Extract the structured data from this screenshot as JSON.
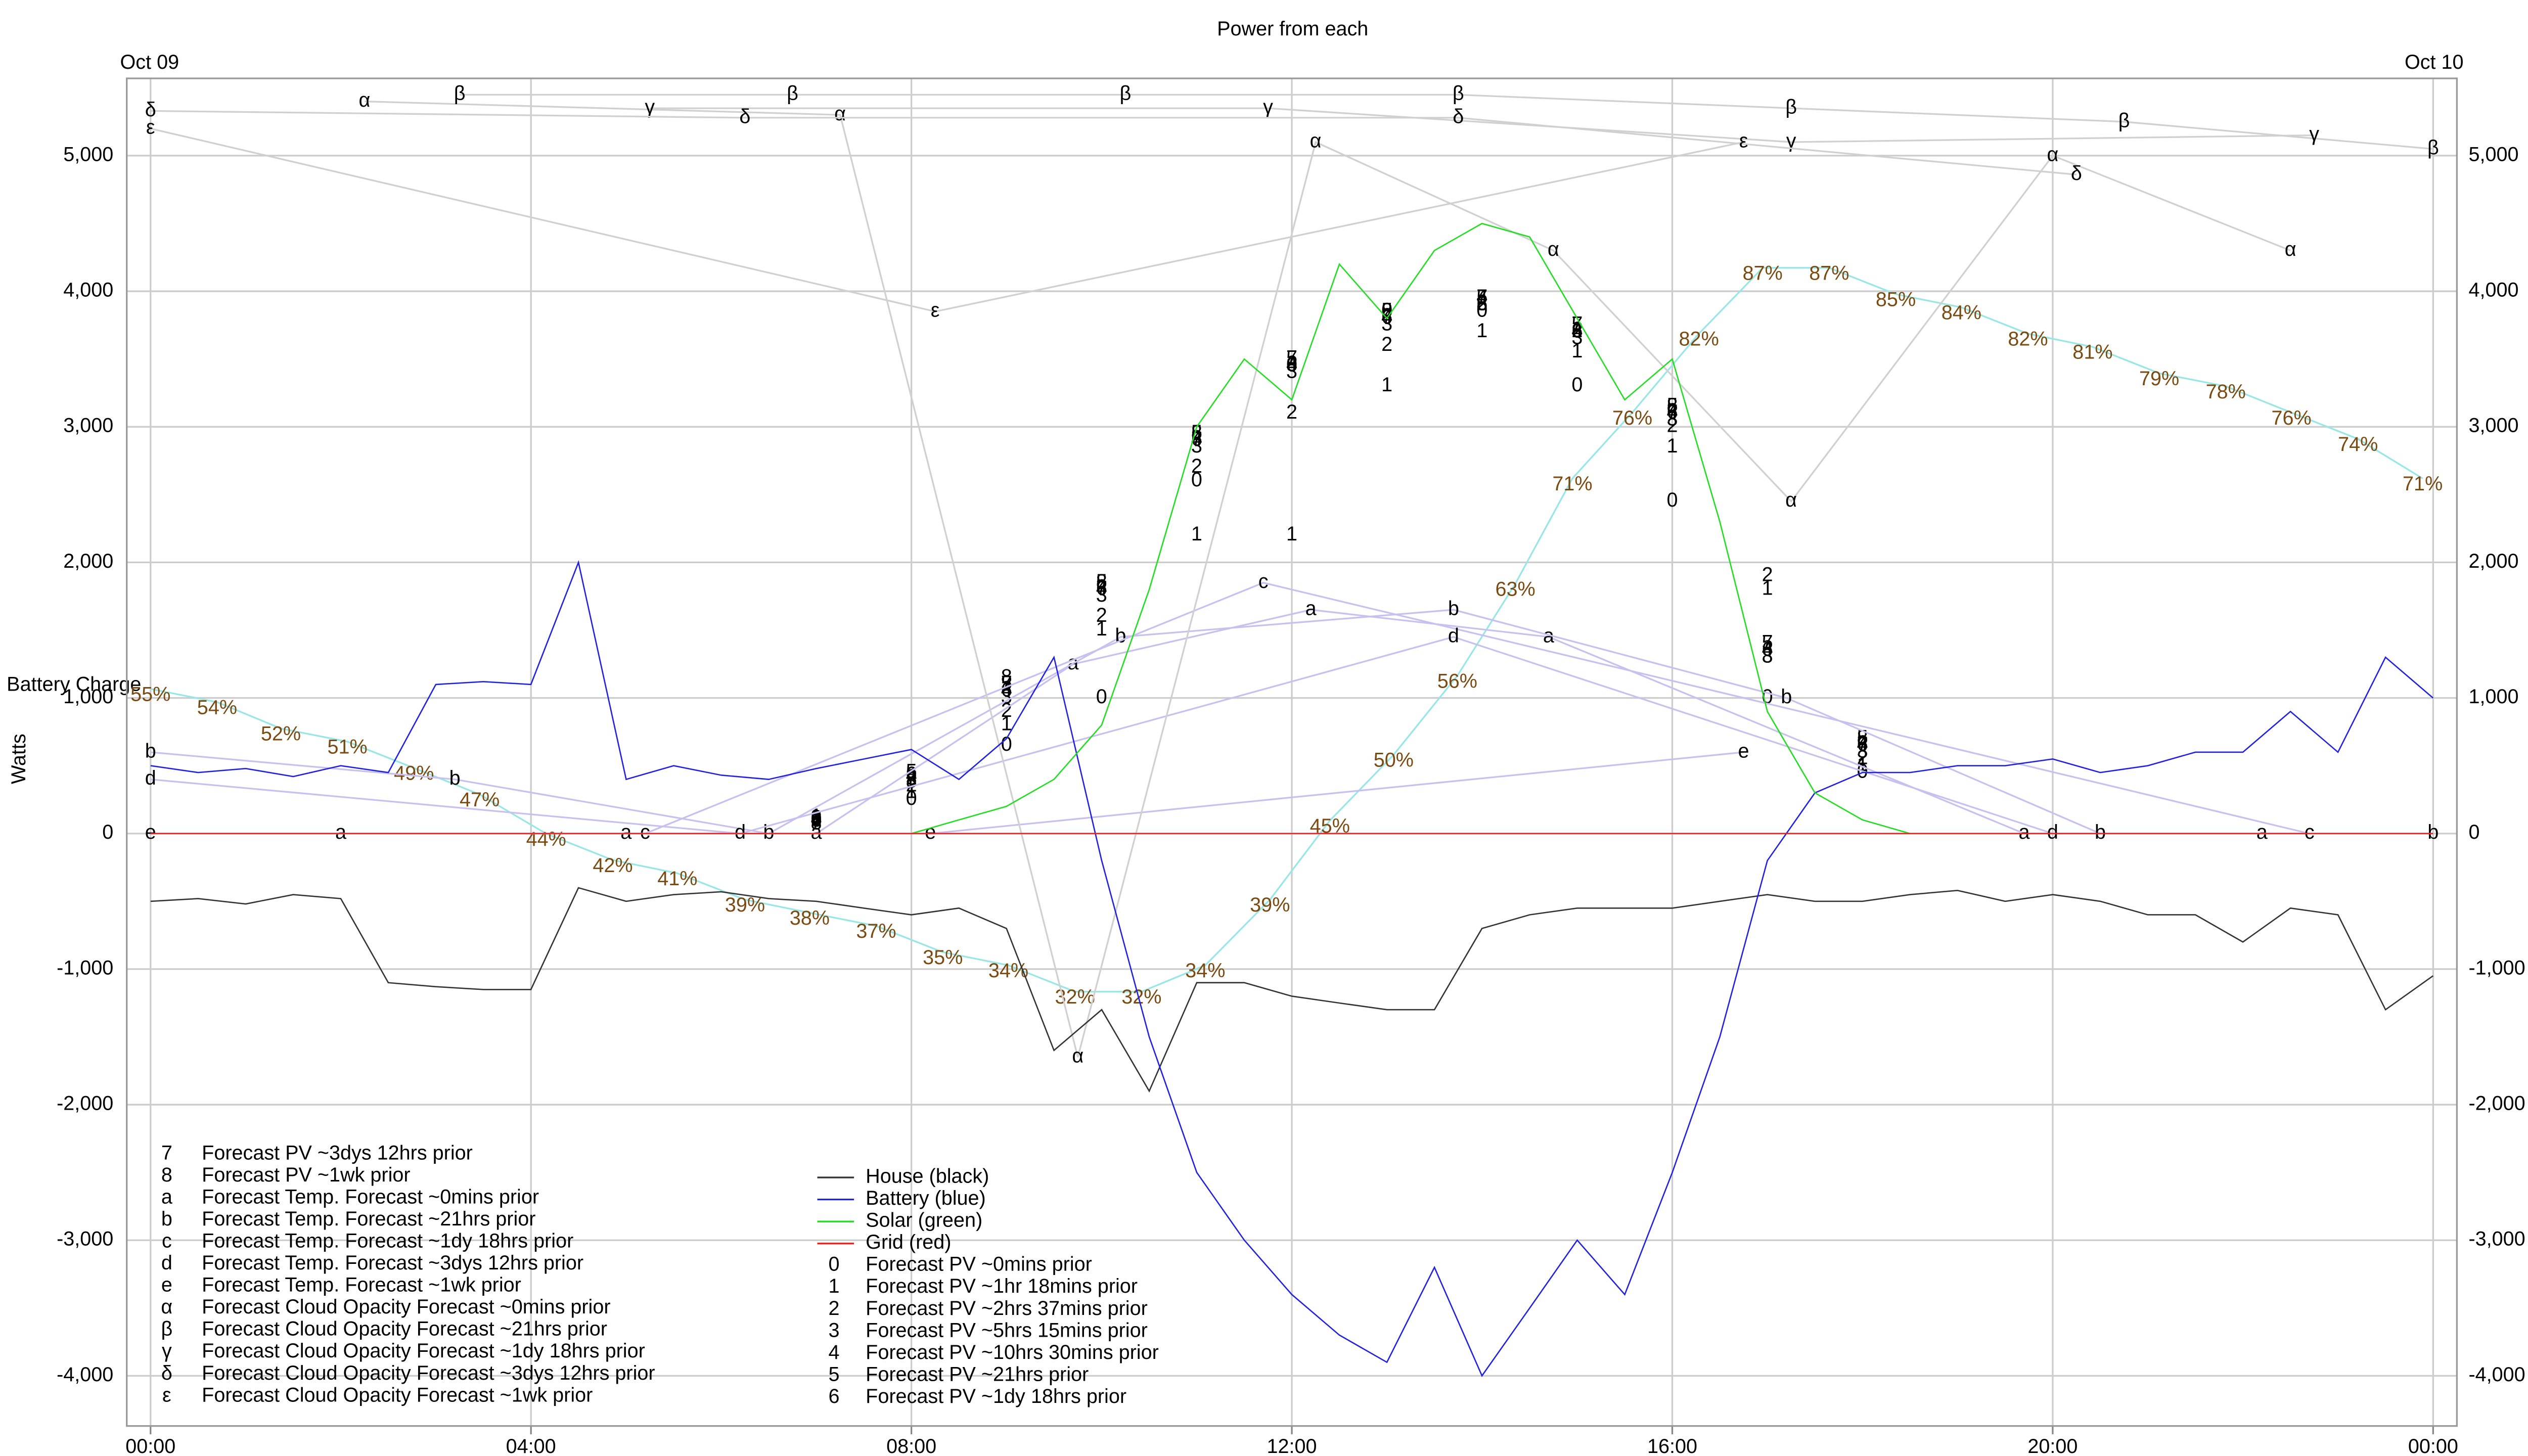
{
  "chart_data": {
    "type": "line",
    "title": "Power from each",
    "date_labels": [
      "Oct 09",
      "Oct 10"
    ],
    "ylabel": "Watts",
    "xlim": [
      -0.25,
      24.25
    ],
    "xticks": [
      {
        "value": 0,
        "label": "00:00"
      },
      {
        "value": 4,
        "label": "04:00"
      },
      {
        "value": 8,
        "label": "08:00"
      },
      {
        "value": 12,
        "label": "12:00"
      },
      {
        "value": 16,
        "label": "16:00"
      },
      {
        "value": 20,
        "label": "20:00"
      },
      {
        "value": 24,
        "label": "00:00"
      }
    ],
    "ylim": [
      -4370,
      5570
    ],
    "yticks": [
      {
        "value": -4000,
        "label": "-4,000"
      },
      {
        "value": -3000,
        "label": "-3,000"
      },
      {
        "value": -2000,
        "label": "-2,000"
      },
      {
        "value": -1000,
        "label": "-1,000"
      },
      0,
      {
        "value": 1000,
        "label": "1,000"
      },
      {
        "value": 2000,
        "label": "2,000"
      },
      {
        "value": 3000,
        "label": "3,000"
      },
      {
        "value": 4000,
        "label": "4,000"
      },
      {
        "value": 5000,
        "label": "5,000"
      }
    ],
    "y2lim": [
      -1,
      101.4
    ],
    "grid": true,
    "battery_charge": {
      "name": "Battery Charge",
      "color": "#99e6e6",
      "label_color": "#7a4a10",
      "axis": "y2",
      "x": [
        0,
        0.7,
        1.37,
        2.07,
        2.77,
        3.46,
        4.16,
        4.86,
        5.54,
        6.25,
        6.93,
        7.63,
        8.33,
        9.02,
        9.72,
        10.42,
        11.09,
        11.77,
        12.4,
        13.07,
        13.74,
        14.35,
        14.95,
        15.58,
        16.28,
        16.95,
        17.65,
        18.35,
        19.04,
        19.74,
        20.42,
        21.12,
        21.82,
        22.51,
        23.21,
        23.89
      ],
      "values": [
        55,
        54,
        52,
        51,
        49,
        47,
        44,
        42,
        41,
        39,
        38,
        37,
        35,
        34,
        32,
        32,
        34,
        39,
        45,
        50,
        56,
        63,
        71,
        76,
        82,
        87,
        87,
        85,
        84,
        82,
        81,
        79,
        78,
        76,
        74,
        71
      ],
      "value_labels": [
        "55%",
        "54%",
        "52%",
        "51%",
        "49%",
        "47%",
        "44%",
        "42%",
        "41%",
        "39%",
        "38%",
        "37%",
        "35%",
        "34%",
        "32%",
        "32%",
        "34%",
        "39%",
        "45%",
        "50%",
        "56%",
        "63%",
        "71%",
        "76%",
        "82%",
        "87%",
        "87%",
        "85%",
        "84%",
        "82%",
        "81%",
        "79%",
        "78%",
        "76%",
        "74%",
        "71%"
      ]
    },
    "series": [
      {
        "name": "House (black)",
        "color": "#333333",
        "style": "line",
        "x": [
          0,
          0.5,
          1,
          1.5,
          2,
          2.5,
          3,
          3.5,
          4,
          4.5,
          5,
          5.5,
          6,
          6.5,
          7,
          7.5,
          8,
          8.5,
          9,
          9.5,
          10,
          10.5,
          11,
          11.5,
          12,
          12.5,
          13,
          13.5,
          14,
          14.5,
          15,
          15.5,
          16,
          16.5,
          17,
          17.5,
          18,
          18.5,
          19,
          19.5,
          20,
          20.5,
          21,
          21.5,
          22,
          22.5,
          23,
          23.5,
          24
        ],
        "values": [
          -500,
          -480,
          -520,
          -450,
          -480,
          -1100,
          -1130,
          -1150,
          -1150,
          -400,
          -500,
          -450,
          -430,
          -480,
          -500,
          -550,
          -600,
          -550,
          -700,
          -1600,
          -1300,
          -1900,
          -1100,
          -1100,
          -1200,
          -1250,
          -1300,
          -1300,
          -700,
          -600,
          -550,
          -550,
          -550,
          -500,
          -450,
          -500,
          -500,
          -450,
          -420,
          -500,
          -450,
          -500,
          -600,
          -600,
          -800,
          -550,
          -600,
          -1300,
          -1050
        ]
      },
      {
        "name": "Battery (blue)",
        "color": "#2222dd",
        "style": "line",
        "x": [
          0,
          0.5,
          1,
          1.5,
          2,
          2.5,
          3,
          3.5,
          4,
          4.5,
          5,
          5.5,
          6,
          6.5,
          7,
          7.5,
          8,
          8.5,
          9,
          9.5,
          10,
          10.5,
          11,
          11.5,
          12,
          12.5,
          13,
          13.5,
          14,
          14.5,
          15,
          15.5,
          16,
          16.5,
          17,
          17.5,
          18,
          18.5,
          19,
          19.5,
          20,
          20.5,
          21,
          21.5,
          22,
          22.5,
          23,
          23.5,
          24
        ],
        "values": [
          500,
          450,
          480,
          420,
          500,
          450,
          1100,
          1120,
          1100,
          2000,
          400,
          500,
          430,
          400,
          480,
          550,
          620,
          400,
          700,
          1300,
          -200,
          -1500,
          -2500,
          -3000,
          -3400,
          -3700,
          -3900,
          -3200,
          -4000,
          -3500,
          -3000,
          -3400,
          -2500,
          -1500,
          -200,
          300,
          450,
          450,
          500,
          500,
          550,
          450,
          500,
          600,
          600,
          900,
          600,
          1300,
          1000
        ]
      },
      {
        "name": "Solar (green)",
        "color": "#22dd22",
        "style": "line",
        "x": [
          0,
          0.5,
          1,
          1.5,
          2,
          2.5,
          3,
          3.5,
          4,
          4.5,
          5,
          5.5,
          6,
          6.5,
          7,
          7.5,
          8,
          8.5,
          9,
          9.5,
          10,
          10.5,
          11,
          11.5,
          12,
          12.5,
          13,
          13.5,
          14,
          14.5,
          15,
          15.5,
          16,
          16.5,
          17,
          17.5,
          18,
          18.5,
          19,
          19.5,
          20,
          20.5,
          21,
          21.5,
          22,
          22.5,
          23,
          23.5,
          24
        ],
        "values": [
          0,
          0,
          0,
          0,
          0,
          0,
          0,
          0,
          0,
          0,
          0,
          0,
          0,
          0,
          0,
          0,
          0,
          100,
          200,
          400,
          800,
          1800,
          3000,
          3500,
          3200,
          4200,
          3800,
          4300,
          4500,
          4400,
          3800,
          3200,
          3500,
          2300,
          900,
          300,
          100,
          0,
          0,
          0,
          0,
          0,
          0,
          0,
          0,
          0,
          0,
          0,
          0
        ]
      },
      {
        "name": "Grid (red)",
        "color": "#ee2222",
        "style": "line",
        "x": [
          0,
          0.5,
          1,
          1.5,
          2,
          2.5,
          3,
          3.5,
          4,
          4.5,
          5,
          5.5,
          6,
          6.5,
          7,
          7.5,
          8,
          8.5,
          9,
          9.5,
          10,
          10.5,
          11,
          11.5,
          12,
          12.5,
          13,
          13.5,
          14,
          14.5,
          15,
          15.5,
          16,
          16.5,
          17,
          17.5,
          18,
          18.5,
          19,
          19.5,
          20,
          20.5,
          21,
          21.5,
          22,
          22.5,
          23,
          23.5,
          24
        ],
        "values": [
          0,
          0,
          0,
          0,
          0,
          0,
          0,
          0,
          0,
          0,
          0,
          0,
          0,
          0,
          0,
          0,
          0,
          0,
          0,
          0,
          0,
          0,
          0,
          0,
          0,
          0,
          0,
          0,
          0,
          0,
          0,
          0,
          0,
          0,
          0,
          0,
          0,
          0,
          0,
          0,
          0,
          0,
          0,
          0,
          0,
          0,
          0,
          0,
          0
        ]
      },
      {
        "name": "Forecast PV ~0mins prior",
        "marker": "0",
        "color": "#000000",
        "style": "markers",
        "x": [
          7,
          8,
          9,
          10,
          11,
          12,
          13,
          14,
          15,
          16,
          17,
          18
        ],
        "values": [
          100,
          250,
          650,
          1000,
          2600,
          3450,
          3850,
          3850,
          3300,
          2450,
          1000,
          450
        ]
      },
      {
        "name": "Forecast PV ~1hr 18mins prior",
        "marker": "1",
        "color": "#000000",
        "style": "markers",
        "x": [
          7,
          8,
          9,
          10,
          11,
          12,
          13,
          14,
          15,
          16,
          17,
          18
        ],
        "values": [
          120,
          300,
          800,
          1500,
          2200,
          2200,
          3300,
          3700,
          3550,
          2850,
          1800,
          500
        ]
      },
      {
        "name": "Forecast PV ~2hrs 37mins prior",
        "marker": "2",
        "color": "#000000",
        "style": "markers",
        "x": [
          7,
          8,
          9,
          10,
          11,
          12,
          13,
          14,
          15,
          16,
          17,
          18
        ],
        "values": [
          110,
          350,
          900,
          1600,
          2700,
          3100,
          3600,
          3900,
          3700,
          3000,
          1900,
          550
        ]
      },
      {
        "name": "Forecast PV ~5hrs 15mins prior",
        "marker": "3",
        "color": "#000000",
        "style": "markers",
        "x": [
          7,
          8,
          9,
          10,
          11,
          12,
          13,
          14,
          15,
          16,
          17,
          18
        ],
        "values": [
          110,
          400,
          1000,
          1750,
          2850,
          3400,
          3750,
          3900,
          3650,
          3050,
          1300,
          600
        ]
      },
      {
        "name": "Forecast PV ~10hrs 30mins prior",
        "marker": "4",
        "color": "#000000",
        "style": "markers",
        "x": [
          7,
          8,
          9,
          10,
          11,
          12,
          13,
          14,
          15,
          16,
          17,
          18
        ],
        "values": [
          100,
          420,
          1050,
          1800,
          2900,
          3450,
          3800,
          3950,
          3700,
          3100,
          1350,
          650
        ]
      },
      {
        "name": "Forecast PV ~21hrs prior",
        "marker": "5",
        "color": "#000000",
        "style": "markers",
        "x": [
          7,
          8,
          9,
          10,
          11,
          12,
          13,
          14,
          15,
          16,
          17,
          18
        ],
        "values": [
          100,
          450,
          1100,
          1850,
          2950,
          3500,
          3850,
          3950,
          3750,
          3150,
          1400,
          700
        ]
      },
      {
        "name": "Forecast PV ~1dy 18hrs prior",
        "marker": "6",
        "color": "#000000",
        "style": "markers",
        "x": [
          7,
          8,
          9,
          10,
          11,
          12,
          13,
          14,
          15,
          16,
          17,
          18
        ],
        "values": [
          90,
          430,
          1050,
          1800,
          2900,
          3450,
          3800,
          3900,
          3700,
          3100,
          1350,
          650
        ]
      },
      {
        "name": "Forecast PV ~3dys 12hrs prior",
        "marker": "7",
        "color": "#000000",
        "style": "markers",
        "x": [
          7,
          8,
          9,
          10,
          11,
          12,
          13,
          14,
          15,
          16,
          17,
          18
        ],
        "values": [
          80,
          400,
          1100,
          1800,
          2900,
          3500,
          3800,
          3950,
          3750,
          3100,
          1400,
          650
        ]
      },
      {
        "name": "Forecast PV ~1wk prior",
        "marker": "8",
        "color": "#000000",
        "style": "markers",
        "x": [
          7,
          8,
          9,
          10,
          11,
          12,
          13,
          14,
          15,
          16,
          17,
          18
        ],
        "values": [
          70,
          380,
          1150,
          1850,
          2950,
          3450,
          3850,
          3900,
          3700,
          3150,
          1300,
          700
        ]
      },
      {
        "name": "Forecast Temp. Forecast ~0mins prior",
        "marker": "a",
        "color": "#c8c0ee",
        "style": "line+markers",
        "x": [
          2,
          5,
          7,
          9.7,
          12.2,
          14.7,
          19.7,
          22.2
        ],
        "values": [
          0,
          0,
          0,
          1250,
          1650,
          1450,
          0,
          0
        ]
      },
      {
        "name": "Forecast Temp. Forecast ~21hrs prior",
        "marker": "b",
        "color": "#c8c0ee",
        "style": "line+markers",
        "x": [
          0,
          3.2,
          6.5,
          10.2,
          13.7,
          17.2,
          20.5,
          24
        ],
        "values": [
          600,
          400,
          0,
          1450,
          1650,
          1000,
          0,
          0
        ]
      },
      {
        "name": "Forecast Temp. Forecast ~1dy 18hrs prior",
        "marker": "c",
        "color": "#c8c0ee",
        "style": "line+markers",
        "x": [
          5.2,
          11.7,
          22.7
        ],
        "values": [
          0,
          1850,
          0
        ]
      },
      {
        "name": "Forecast Temp. Forecast ~3dys 12hrs prior",
        "marker": "d",
        "color": "#c8c0ee",
        "style": "line+markers",
        "x": [
          0,
          6.2,
          13.7,
          20
        ],
        "values": [
          400,
          0,
          1450,
          0
        ]
      },
      {
        "name": "Forecast Temp. Forecast ~1wk prior",
        "marker": "e",
        "color": "#c8c0ee",
        "style": "line+markers",
        "x": [
          0,
          8.2,
          16.75
        ],
        "values": [
          0,
          0,
          600
        ]
      },
      {
        "name": "Forecast Cloud Opacity Forecast ~0mins prior",
        "marker": "α",
        "color": "#d0d0d0",
        "style": "line+markers",
        "x": [
          2.25,
          7.25,
          9.75,
          12.25,
          14.75,
          17.25,
          20,
          22.5
        ],
        "values": [
          5400,
          5300,
          -1650,
          5100,
          4300,
          2450,
          5000,
          4300
        ]
      },
      {
        "name": "Forecast Cloud Opacity Forecast ~21hrs prior",
        "marker": "β",
        "color": "#d0d0d0",
        "style": "line+markers",
        "x": [
          3.25,
          6.75,
          10.25,
          13.75,
          17.25,
          20.75,
          24
        ],
        "values": [
          5450,
          5450,
          5450,
          5450,
          5350,
          5250,
          5050
        ]
      },
      {
        "name": "Forecast Cloud Opacity Forecast ~1dy 18hrs prior",
        "marker": "γ",
        "color": "#d0d0d0",
        "style": "line+markers",
        "x": [
          5.25,
          11.75,
          17.25,
          22.75
        ],
        "values": [
          5350,
          5350,
          5100,
          5150
        ]
      },
      {
        "name": "Forecast Cloud Opacity Forecast ~3dys 12hrs prior",
        "marker": "δ",
        "color": "#d0d0d0",
        "style": "line+markers",
        "x": [
          0,
          6.25,
          13.75,
          20.25
        ],
        "values": [
          5330,
          5280,
          5280,
          4860
        ]
      },
      {
        "name": "Forecast Cloud Opacity Forecast ~1wk prior",
        "marker": "ε",
        "color": "#d0d0d0",
        "style": "line+markers",
        "x": [
          0,
          8.25,
          16.75
        ],
        "values": [
          5200,
          3850,
          5100
        ]
      }
    ]
  }
}
